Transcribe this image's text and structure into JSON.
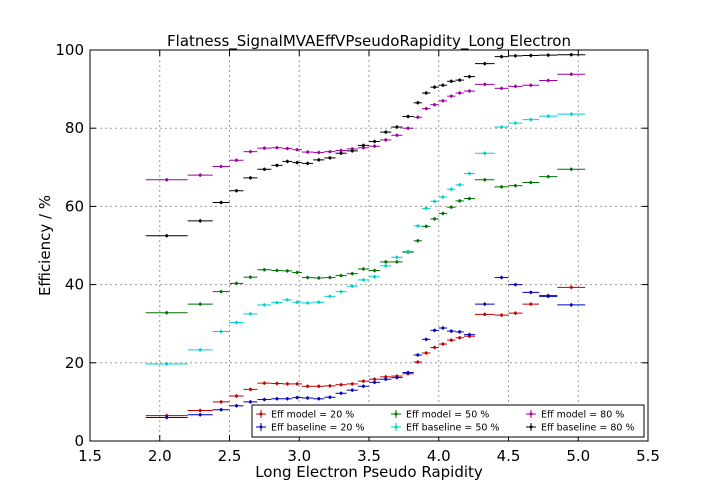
{
  "chart_data": {
    "type": "scatter",
    "title": "Flatness_SignalMVAEffVPseudoRapidity_Long Electron",
    "xlabel": "Long Electron Pseudo Rapidity",
    "ylabel": "Efficiency / %",
    "xlim": [
      1.5,
      5.5
    ],
    "ylim": [
      0,
      100
    ],
    "xticks": [
      "1.5",
      "2.0",
      "2.5",
      "3.0",
      "3.5",
      "4.0",
      "4.5",
      "5.0",
      "5.5"
    ],
    "yticks": [
      "0",
      "20",
      "40",
      "60",
      "80",
      "100"
    ],
    "grid": true,
    "legend_position": "bottom-right",
    "bins": [
      [
        1.9,
        2.2
      ],
      [
        2.2,
        2.38
      ],
      [
        2.38,
        2.5
      ],
      [
        2.5,
        2.6
      ],
      [
        2.6,
        2.7
      ],
      [
        2.7,
        2.8
      ],
      [
        2.8,
        2.88
      ],
      [
        2.88,
        2.95
      ],
      [
        2.95,
        3.02
      ],
      [
        3.02,
        3.1
      ],
      [
        3.1,
        3.18
      ],
      [
        3.18,
        3.26
      ],
      [
        3.26,
        3.34
      ],
      [
        3.34,
        3.42
      ],
      [
        3.42,
        3.5
      ],
      [
        3.5,
        3.58
      ],
      [
        3.58,
        3.66
      ],
      [
        3.66,
        3.74
      ],
      [
        3.74,
        3.82
      ],
      [
        3.82,
        3.88
      ],
      [
        3.88,
        3.94
      ],
      [
        3.94,
        4.0
      ],
      [
        4.0,
        4.06
      ],
      [
        4.06,
        4.12
      ],
      [
        4.12,
        4.18
      ],
      [
        4.18,
        4.26
      ],
      [
        4.26,
        4.4
      ],
      [
        4.4,
        4.5
      ],
      [
        4.5,
        4.6
      ],
      [
        4.6,
        4.72
      ],
      [
        4.72,
        4.85
      ],
      [
        4.85,
        5.05
      ]
    ],
    "series": [
      {
        "name": "Eff model = 20 %",
        "color": "#c00000",
        "values": [
          6.5,
          7.8,
          10.0,
          11.5,
          13.2,
          14.8,
          14.7,
          14.6,
          14.6,
          14.0,
          14.0,
          14.1,
          14.4,
          14.6,
          15.3,
          15.8,
          16.4,
          16.6,
          17.2,
          20.2,
          22.5,
          23.9,
          24.8,
          25.8,
          26.4,
          26.8,
          32.4,
          32.2,
          32.7,
          35.0,
          37.2,
          39.3
        ]
      },
      {
        "name": "Eff baseline = 20 %",
        "color": "#0000c0",
        "values": [
          6.0,
          6.7,
          8.0,
          9.0,
          10.0,
          10.6,
          10.8,
          10.8,
          11.1,
          11.0,
          10.8,
          11.2,
          12.2,
          13.0,
          14.0,
          15.0,
          15.8,
          16.2,
          17.5,
          22.0,
          26.0,
          28.3,
          28.9,
          28.1,
          27.9,
          27.2,
          35.0,
          41.8,
          40.0,
          38.0,
          37.0,
          34.8
        ]
      },
      {
        "name": "Eff model = 50 %",
        "color": "#007000",
        "values": [
          32.8,
          35.0,
          38.2,
          40.3,
          41.9,
          43.8,
          43.6,
          43.5,
          43.1,
          41.8,
          41.7,
          41.8,
          42.3,
          42.8,
          44.0,
          43.6,
          45.8,
          45.8,
          48.3,
          51.2,
          54.9,
          56.8,
          58.2,
          59.8,
          61.4,
          62.0,
          66.8,
          65.0,
          65.3,
          66.1,
          67.6,
          69.5
        ]
      },
      {
        "name": "Eff baseline = 50 %",
        "color": "#00d0d0",
        "values": [
          19.7,
          23.3,
          28.0,
          30.3,
          32.5,
          34.8,
          35.4,
          36.1,
          35.5,
          35.3,
          35.5,
          37.0,
          38.2,
          39.6,
          41.2,
          42.0,
          44.8,
          47.0,
          48.5,
          55.0,
          59.5,
          61.3,
          62.4,
          64.4,
          65.5,
          68.4,
          73.6,
          80.3,
          81.3,
          82.2,
          83.1,
          83.6
        ]
      },
      {
        "name": "Eff model = 80 %",
        "color": "#a000a0",
        "values": [
          66.8,
          68.0,
          70.2,
          71.8,
          74.0,
          74.9,
          75.0,
          74.8,
          74.5,
          73.9,
          73.8,
          74.0,
          74.3,
          74.7,
          75.0,
          75.4,
          77.0,
          78.2,
          80.0,
          82.8,
          85.0,
          86.0,
          87.0,
          88.2,
          89.0,
          89.5,
          91.2,
          90.2,
          90.7,
          91.0,
          92.2,
          93.8
        ]
      },
      {
        "name": "Eff baseline = 80 %",
        "color": "#000000",
        "values": [
          52.5,
          56.3,
          61.0,
          64.0,
          67.3,
          69.5,
          70.5,
          71.5,
          71.2,
          71.0,
          71.9,
          72.4,
          73.6,
          74.2,
          75.6,
          76.6,
          79.0,
          80.3,
          83.0,
          86.5,
          89.0,
          90.5,
          91.0,
          92.0,
          92.3,
          93.2,
          96.5,
          98.3,
          98.5,
          98.6,
          98.7,
          98.8
        ]
      }
    ]
  }
}
